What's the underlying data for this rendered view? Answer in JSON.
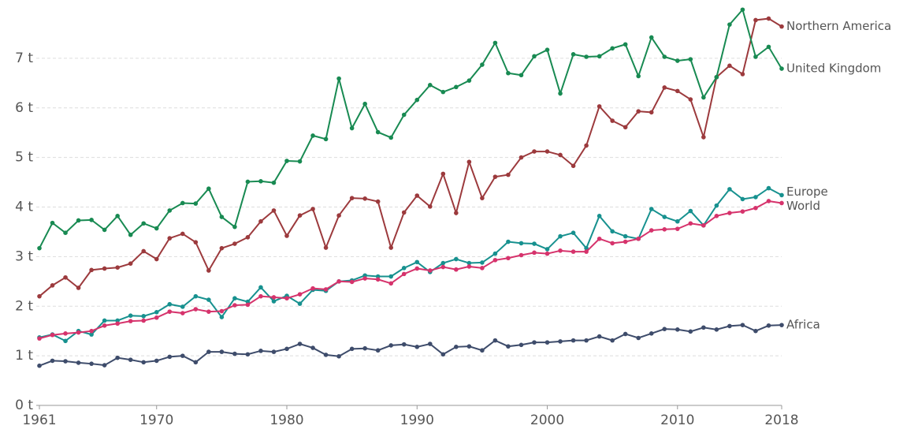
{
  "chart_data": {
    "type": "line",
    "x": [
      1961,
      1962,
      1963,
      1964,
      1965,
      1966,
      1967,
      1968,
      1969,
      1970,
      1971,
      1972,
      1973,
      1974,
      1975,
      1976,
      1977,
      1978,
      1979,
      1980,
      1981,
      1982,
      1983,
      1984,
      1985,
      1986,
      1987,
      1988,
      1989,
      1990,
      1991,
      1992,
      1993,
      1994,
      1995,
      1996,
      1997,
      1998,
      1999,
      2000,
      2001,
      2002,
      2003,
      2004,
      2005,
      2006,
      2007,
      2008,
      2009,
      2010,
      2011,
      2012,
      2013,
      2014,
      2015,
      2016,
      2017,
      2018
    ],
    "xlim": [
      1961,
      2018
    ],
    "xticks": [
      1961,
      1970,
      1980,
      1990,
      2000,
      2010,
      2018
    ],
    "ylim": [
      0,
      8
    ],
    "yticks": [
      {
        "value": 0,
        "label": "0 t"
      },
      {
        "value": 1,
        "label": "1 t"
      },
      {
        "value": 2,
        "label": "2 t"
      },
      {
        "value": 3,
        "label": "3 t"
      },
      {
        "value": 4,
        "label": "4 t"
      },
      {
        "value": 5,
        "label": "5 t"
      },
      {
        "value": 6,
        "label": "6 t"
      },
      {
        "value": 7,
        "label": "7 t"
      }
    ],
    "grid": true,
    "series": [
      {
        "name": "Northern America",
        "color": "#9c3a3d",
        "values": [
          2.2,
          2.42,
          2.58,
          2.37,
          2.73,
          2.76,
          2.78,
          2.86,
          3.11,
          2.95,
          3.37,
          3.46,
          3.29,
          2.72,
          3.17,
          3.26,
          3.39,
          3.71,
          3.93,
          3.42,
          3.83,
          3.96,
          3.18,
          3.83,
          4.18,
          4.17,
          4.11,
          3.18,
          3.89,
          4.23,
          4.01,
          4.67,
          3.88,
          4.91,
          4.18,
          4.61,
          4.65,
          5.0,
          5.12,
          5.12,
          5.05,
          4.83,
          5.24,
          6.03,
          5.74,
          5.61,
          5.93,
          5.91,
          6.41,
          6.34,
          6.17,
          5.41,
          6.62,
          6.85,
          6.68,
          7.77,
          7.8,
          7.64
        ]
      },
      {
        "name": "United Kingdom",
        "color": "#188a52",
        "values": [
          3.17,
          3.68,
          3.48,
          3.73,
          3.74,
          3.54,
          3.82,
          3.44,
          3.67,
          3.57,
          3.93,
          4.08,
          4.07,
          4.37,
          3.8,
          3.6,
          4.51,
          4.52,
          4.49,
          4.93,
          4.92,
          5.44,
          5.37,
          6.59,
          5.59,
          6.08,
          5.51,
          5.4,
          5.86,
          6.16,
          6.46,
          6.32,
          6.42,
          6.55,
          6.87,
          7.31,
          6.7,
          6.66,
          7.04,
          7.17,
          6.29,
          7.08,
          7.03,
          7.04,
          7.2,
          7.28,
          6.64,
          7.42,
          7.03,
          6.95,
          6.98,
          6.21,
          6.62,
          7.68,
          7.98,
          7.03,
          7.23,
          6.79
        ]
      },
      {
        "name": "Europe",
        "color": "#17918f",
        "values": [
          1.37,
          1.43,
          1.3,
          1.5,
          1.43,
          1.71,
          1.71,
          1.81,
          1.8,
          1.88,
          2.04,
          1.99,
          2.2,
          2.13,
          1.78,
          2.16,
          2.09,
          2.38,
          2.1,
          2.21,
          2.05,
          2.33,
          2.31,
          2.5,
          2.52,
          2.62,
          2.6,
          2.6,
          2.77,
          2.89,
          2.69,
          2.87,
          2.95,
          2.87,
          2.88,
          3.06,
          3.3,
          3.27,
          3.26,
          3.15,
          3.41,
          3.48,
          3.17,
          3.82,
          3.51,
          3.41,
          3.36,
          3.96,
          3.8,
          3.71,
          3.92,
          3.63,
          4.03,
          4.36,
          4.16,
          4.2,
          4.38,
          4.24
        ]
      },
      {
        "name": "World",
        "color": "#d6336c",
        "values": [
          1.35,
          1.42,
          1.45,
          1.47,
          1.5,
          1.61,
          1.65,
          1.7,
          1.71,
          1.77,
          1.89,
          1.86,
          1.94,
          1.89,
          1.9,
          2.02,
          2.03,
          2.2,
          2.18,
          2.16,
          2.24,
          2.36,
          2.34,
          2.5,
          2.49,
          2.56,
          2.54,
          2.46,
          2.65,
          2.76,
          2.72,
          2.79,
          2.74,
          2.8,
          2.77,
          2.93,
          2.97,
          3.03,
          3.08,
          3.06,
          3.12,
          3.1,
          3.1,
          3.36,
          3.27,
          3.3,
          3.36,
          3.53,
          3.55,
          3.56,
          3.67,
          3.63,
          3.82,
          3.88,
          3.91,
          3.98,
          4.12,
          4.08
        ]
      },
      {
        "name": "Africa",
        "color": "#3e4c6b",
        "values": [
          0.8,
          0.9,
          0.89,
          0.86,
          0.84,
          0.81,
          0.96,
          0.92,
          0.87,
          0.9,
          0.98,
          1.0,
          0.87,
          1.08,
          1.08,
          1.04,
          1.03,
          1.1,
          1.08,
          1.14,
          1.24,
          1.16,
          1.02,
          0.99,
          1.14,
          1.15,
          1.11,
          1.21,
          1.23,
          1.18,
          1.24,
          1.03,
          1.18,
          1.19,
          1.11,
          1.31,
          1.19,
          1.22,
          1.27,
          1.27,
          1.29,
          1.31,
          1.31,
          1.39,
          1.31,
          1.44,
          1.36,
          1.45,
          1.54,
          1.53,
          1.49,
          1.57,
          1.53,
          1.6,
          1.62,
          1.5,
          1.61,
          1.62
        ]
      }
    ]
  }
}
